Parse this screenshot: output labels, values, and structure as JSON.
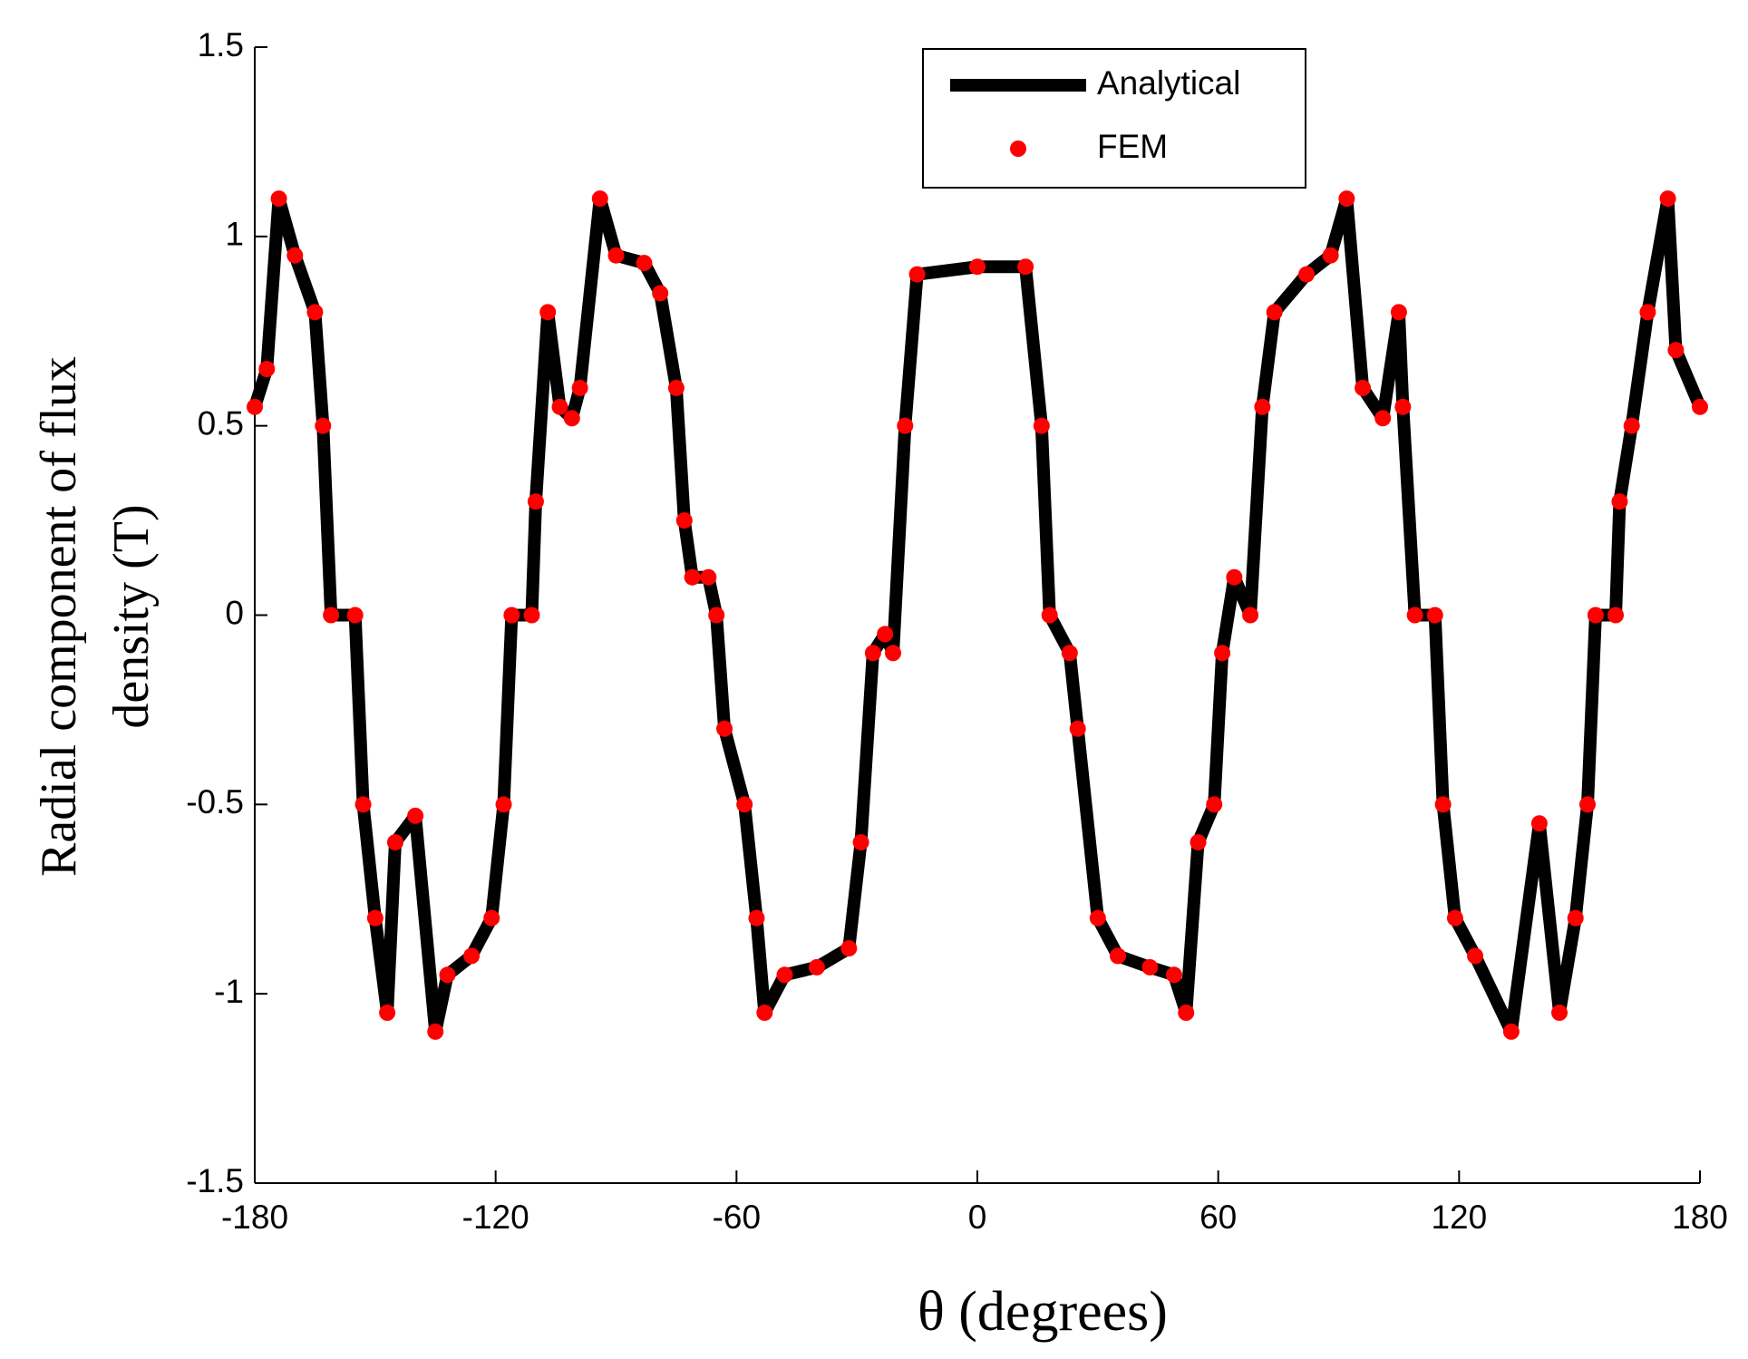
{
  "chart_data": {
    "type": "line",
    "x_label": "θ (degrees)",
    "y_label": [
      "Radial component of flux",
      "density (T)"
    ],
    "x": [
      -180,
      -177,
      -174,
      -170,
      -165,
      -163,
      -161,
      -155,
      -153,
      -150,
      -147,
      -145,
      -140,
      -135,
      -132,
      -126,
      -121,
      -118,
      -116,
      -111,
      -110,
      -107,
      -104,
      -101,
      -99,
      -94,
      -90,
      -83,
      -79,
      -75,
      -73,
      -71,
      -67,
      -65,
      -63,
      -58,
      -55,
      -53,
      -48,
      -40,
      -32,
      -29,
      -26,
      -23,
      -21,
      -18,
      -15,
      0,
      12,
      16,
      18,
      23,
      25,
      30,
      35,
      43,
      49,
      52,
      55,
      59,
      61,
      64,
      68,
      71,
      74,
      82,
      88,
      92,
      96,
      101,
      105,
      106,
      109,
      114,
      116,
      119,
      124,
      133,
      140,
      145,
      149,
      152,
      154,
      159,
      160,
      163,
      167,
      172,
      174,
      180
    ],
    "series": [
      {
        "name": "Analytical",
        "color": "#000000",
        "style": "line",
        "values": [
          0.55,
          0.65,
          1.1,
          0.95,
          0.8,
          0.5,
          0,
          0,
          -0.5,
          -0.8,
          -1.05,
          -0.6,
          -0.53,
          -1.1,
          -0.95,
          -0.9,
          -0.8,
          -0.5,
          0,
          0,
          0.3,
          0.8,
          0.55,
          0.52,
          0.6,
          1.1,
          0.95,
          0.93,
          0.85,
          0.6,
          0.25,
          0.1,
          0.1,
          0,
          -0.3,
          -0.5,
          -0.8,
          -1.05,
          -0.95,
          -0.93,
          -0.88,
          -0.6,
          -0.1,
          -0.05,
          -0.1,
          0.5,
          0.9,
          0.92,
          0.92,
          0.5,
          0,
          -0.1,
          -0.3,
          -0.8,
          -0.9,
          -0.93,
          -0.95,
          -1.05,
          -0.6,
          -0.5,
          -0.1,
          0.1,
          0,
          0.55,
          0.8,
          0.9,
          0.95,
          1.1,
          0.6,
          0.52,
          0.8,
          0.55,
          0,
          0,
          -0.5,
          -0.8,
          -0.9,
          -1.1,
          -0.55,
          -1.05,
          -0.8,
          -0.5,
          0,
          0,
          0.3,
          0.5,
          0.8,
          1.1,
          0.7,
          0.55
        ]
      },
      {
        "name": "FEM",
        "color": "#ff0000",
        "style": "markers",
        "values": [
          0.55,
          0.65,
          1.1,
          0.95,
          0.8,
          0.5,
          0,
          0,
          -0.5,
          -0.8,
          -1.05,
          -0.6,
          -0.53,
          -1.1,
          -0.95,
          -0.9,
          -0.8,
          -0.5,
          0,
          0,
          0.3,
          0.8,
          0.55,
          0.52,
          0.6,
          1.1,
          0.95,
          0.93,
          0.85,
          0.6,
          0.25,
          0.1,
          0.1,
          0,
          -0.3,
          -0.5,
          -0.8,
          -1.05,
          -0.95,
          -0.93,
          -0.88,
          -0.6,
          -0.1,
          -0.05,
          -0.1,
          0.5,
          0.9,
          0.92,
          0.92,
          0.5,
          0,
          -0.1,
          -0.3,
          -0.8,
          -0.9,
          -0.93,
          -0.95,
          -1.05,
          -0.6,
          -0.5,
          -0.1,
          0.1,
          0,
          0.55,
          0.8,
          0.9,
          0.95,
          1.1,
          0.6,
          0.52,
          0.8,
          0.55,
          0,
          0,
          -0.5,
          -0.8,
          -0.9,
          -1.1,
          -0.55,
          -1.05,
          -0.8,
          -0.5,
          0,
          0,
          0.3,
          0.5,
          0.8,
          1.1,
          0.7,
          0.55
        ]
      }
    ],
    "xlim": [
      -180,
      180
    ],
    "ylim": [
      -1.5,
      1.5
    ],
    "xticks": [
      -180,
      -120,
      -60,
      0,
      60,
      120,
      180
    ],
    "yticks": [
      -1.5,
      -1,
      -0.5,
      0,
      0.5,
      1,
      1.5
    ],
    "grid": false,
    "legend": "upper-center"
  }
}
